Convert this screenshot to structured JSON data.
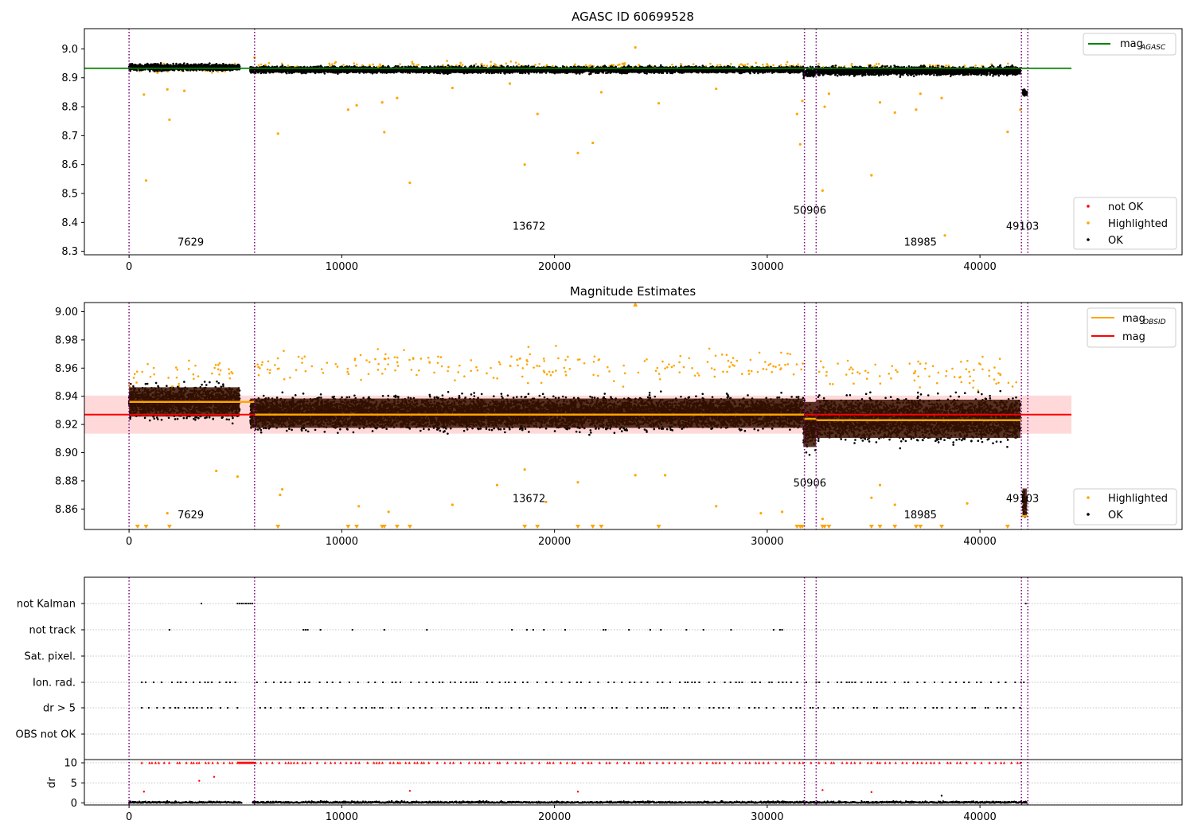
{
  "colors": {
    "ok": "#000000",
    "highlighted": "#ffa500",
    "not_ok": "#ff0000",
    "agasc_line": "#008000",
    "mag_line": "#ff0000",
    "mag_obsid_line": "#ffa500",
    "obs_boundary": "#800080",
    "band": "#ffcccc",
    "band_core": "#3a1200",
    "grid": "#b0b0b0"
  },
  "chart_data": [
    {
      "type": "scatter",
      "title": "AGASC ID 60699528",
      "xlim": [
        -2100,
        49500
      ],
      "ylim": [
        8.288,
        9.07
      ],
      "x_ticks": [
        0,
        10000,
        20000,
        30000,
        40000
      ],
      "x_tick_labels": [
        "0",
        "10000",
        "20000",
        "30000",
        "40000"
      ],
      "y_ticks": [
        8.3,
        8.4,
        8.5,
        8.6,
        8.7,
        8.8,
        8.9,
        9.0
      ],
      "y_tick_labels": [
        "8.3",
        "8.4",
        "8.5",
        "8.6",
        "8.7",
        "8.8",
        "8.9",
        "9.0"
      ],
      "obs_boundaries": [
        0,
        5900,
        31750,
        32300,
        41950,
        42250
      ],
      "obsids": [
        {
          "label": "7629",
          "x": 2900,
          "y": 8.32
        },
        {
          "label": "13672",
          "x": 18800,
          "y": 8.375
        },
        {
          "label": "50906",
          "x": 32000,
          "y": 8.43
        },
        {
          "label": "18985",
          "x": 37200,
          "y": 8.32
        },
        {
          "label": "49103",
          "x": 42000,
          "y": 8.375
        }
      ],
      "reference_line": {
        "name": "mag",
        "subscript": "AGASC",
        "y": 8.933,
        "x": [
          -2100,
          44300
        ]
      },
      "series": [
        {
          "name": "not OK",
          "style": "point",
          "segments": []
        },
        {
          "name": "Highlighted",
          "style": "point",
          "outliers": [
            [
              700,
              8.842
            ],
            [
              800,
              8.545
            ],
            [
              1900,
              8.755
            ],
            [
              1800,
              8.86
            ],
            [
              2600,
              8.855
            ],
            [
              7000,
              8.707
            ],
            [
              10300,
              8.79
            ],
            [
              10700,
              8.805
            ],
            [
              11900,
              8.815
            ],
            [
              12000,
              8.712
            ],
            [
              12600,
              8.83
            ],
            [
              13200,
              8.537
            ],
            [
              15200,
              8.865
            ],
            [
              17900,
              8.88
            ],
            [
              18600,
              8.6
            ],
            [
              19200,
              8.775
            ],
            [
              21100,
              8.64
            ],
            [
              21800,
              8.675
            ],
            [
              22200,
              8.85
            ],
            [
              24900,
              8.812
            ],
            [
              27600,
              8.862
            ],
            [
              31400,
              8.775
            ],
            [
              31550,
              8.67
            ],
            [
              31650,
              8.82
            ],
            [
              32600,
              8.51
            ],
            [
              32700,
              8.8
            ],
            [
              32900,
              8.845
            ],
            [
              34900,
              8.563
            ],
            [
              35300,
              8.815
            ],
            [
              36000,
              8.78
            ],
            [
              37000,
              8.79
            ],
            [
              37200,
              8.845
            ],
            [
              38200,
              8.83
            ],
            [
              38350,
              8.355
            ],
            [
              41300,
              8.713
            ],
            [
              41900,
              8.79
            ],
            [
              23800,
              9.005
            ],
            [
              5900,
              8.97
            ]
          ],
          "scatter_segments": [
            {
              "x": [
                0,
                5100
              ],
              "center": 8.933,
              "spread": 0.018,
              "count": 80
            },
            {
              "x": [
                5900,
                31700
              ],
              "center": 8.94,
              "spread": 0.018,
              "count": 220
            },
            {
              "x": [
                32300,
                41900
              ],
              "center": 8.935,
              "spread": 0.02,
              "count": 90
            }
          ]
        },
        {
          "name": "OK",
          "style": "point",
          "segments": [
            {
              "x": [
                0,
                5200
              ],
              "center": 8.936,
              "spread": 0.013
            },
            {
              "x": [
                5700,
                31700
              ],
              "center": 8.928,
              "spread": 0.013
            },
            {
              "x": [
                31700,
                32300
              ],
              "center": 8.92,
              "spread": 0.02
            },
            {
              "x": [
                32300,
                41900
              ],
              "center": 8.924,
              "spread": 0.017
            },
            {
              "x": [
                42000,
                42200
              ],
              "center": 8.85,
              "spread": 0.015
            }
          ]
        }
      ],
      "legends": [
        {
          "position": "upper right",
          "entries": [
            {
              "name": "mag",
              "subscript": "AGASC",
              "style": "line"
            }
          ]
        },
        {
          "position": "lower right",
          "entries": [
            {
              "name": "not OK",
              "style": "point"
            },
            {
              "name": "Highlighted",
              "style": "point"
            },
            {
              "name": "OK",
              "style": "point"
            }
          ]
        }
      ]
    },
    {
      "type": "scatter",
      "title": "Magnitude Estimates",
      "xlim": [
        -2100,
        49500
      ],
      "ylim": [
        8.8455,
        9.0065
      ],
      "x_ticks": [
        0,
        10000,
        20000,
        30000,
        40000
      ],
      "x_tick_labels": [
        "0",
        "10000",
        "20000",
        "30000",
        "40000"
      ],
      "y_ticks": [
        8.86,
        8.88,
        8.9,
        8.92,
        8.94,
        8.96,
        8.98,
        9.0
      ],
      "y_tick_labels": [
        "8.86",
        "8.88",
        "8.90",
        "8.92",
        "8.94",
        "8.96",
        "8.98",
        "9.00"
      ],
      "obs_boundaries": [
        0,
        5900,
        31750,
        32300,
        41950,
        42250
      ],
      "obsids": [
        {
          "label": "7629",
          "x": 2900,
          "y": 8.8535
        },
        {
          "label": "13672",
          "x": 18800,
          "y": 8.865
        },
        {
          "label": "50906",
          "x": 32000,
          "y": 8.876
        },
        {
          "label": "18985",
          "x": 37200,
          "y": 8.8535
        },
        {
          "label": "49103",
          "x": 42000,
          "y": 8.865
        }
      ],
      "mag": {
        "value": 8.927,
        "band": [
          8.9135,
          8.9405
        ],
        "x": [
          -2100,
          44300
        ]
      },
      "mag_obsid": [
        {
          "x": [
            0,
            5900
          ],
          "y": 8.936
        },
        {
          "x": [
            5900,
            31750
          ],
          "y": 8.927
        },
        {
          "x": [
            31750,
            32300
          ],
          "y": 8.924
        },
        {
          "x": [
            32300,
            41950
          ],
          "y": 8.923
        },
        {
          "x": [
            41950,
            42250
          ],
          "y": 8.855
        }
      ],
      "series": [
        {
          "name": "Highlighted",
          "style": "point",
          "outliers": [
            [
              1800,
              8.857
            ],
            [
              7100,
              8.87
            ],
            [
              7200,
              8.874
            ],
            [
              10800,
              8.862
            ],
            [
              12200,
              8.858
            ],
            [
              15200,
              8.863
            ],
            [
              17300,
              8.877
            ],
            [
              18600,
              8.888
            ],
            [
              19600,
              8.865
            ],
            [
              21100,
              8.879
            ],
            [
              23800,
              8.884
            ],
            [
              25200,
              8.884
            ],
            [
              27600,
              8.862
            ],
            [
              29700,
              8.857
            ],
            [
              30700,
              8.858
            ],
            [
              32600,
              8.853
            ],
            [
              34900,
              8.868
            ],
            [
              35300,
              8.877
            ],
            [
              36000,
              8.863
            ],
            [
              39400,
              8.864
            ],
            [
              4100,
              8.887
            ],
            [
              5100,
              8.883
            ],
            [
              23800,
              9.005
            ]
          ],
          "floor_markers_x": [
            400,
            800,
            1900,
            7000,
            10300,
            10700,
            11900,
            12000,
            12600,
            13200,
            18600,
            19200,
            21100,
            21800,
            22200,
            24900,
            31400,
            31550,
            31650,
            32600,
            32700,
            32900,
            34900,
            35300,
            36000,
            37000,
            37200,
            38200,
            41300
          ]
        },
        {
          "name": "OK",
          "style": "point",
          "segments": [
            {
              "x": [
                0,
                5200
              ],
              "center": 8.936,
              "spread": 0.013
            },
            {
              "x": [
                5700,
                31700
              ],
              "center": 8.928,
              "spread": 0.013
            },
            {
              "x": [
                31700,
                32300
              ],
              "center": 8.92,
              "spread": 0.02
            },
            {
              "x": [
                32300,
                41900
              ],
              "center": 8.924,
              "spread": 0.017
            },
            {
              "x": [
                42000,
                42200
              ],
              "center": 8.865,
              "spread": 0.012
            }
          ]
        }
      ],
      "legends": [
        {
          "position": "upper right",
          "entries": [
            {
              "name": "mag",
              "subscript": "OBSID",
              "style": "line"
            },
            {
              "name": "mag",
              "style": "line"
            }
          ]
        },
        {
          "position": "lower right",
          "entries": [
            {
              "name": "Highlighted",
              "style": "point"
            },
            {
              "name": "OK",
              "style": "point"
            }
          ]
        }
      ]
    },
    {
      "type": "scatter",
      "title": "",
      "xlim": [
        -2100,
        49500
      ],
      "flag_rows": [
        "not Kalman",
        "not track",
        "Sat. pixel.",
        "Ion. rad.",
        "dr > 5",
        "OBS not OK"
      ],
      "flags": {
        "not Kalman": {
          "points": [
            3400,
            5100,
            5200,
            5300,
            5400,
            5500,
            5600,
            5700,
            5800,
            42150
          ]
        },
        "not track": {
          "points": [
            1900,
            8200,
            8300,
            8400,
            9000,
            10500,
            12000,
            14000,
            18000,
            18700,
            19000,
            19500,
            20500,
            22300,
            22400,
            23500,
            24500,
            25000,
            26200,
            27000,
            28300,
            30300,
            30600,
            30700
          ]
        },
        "Sat. pixel.": {
          "points": []
        },
        "Ion. rad.": {
          "density": "dense",
          "x": [
            600,
            42100
          ]
        },
        "dr > 5": {
          "density": "dense",
          "x": [
            600,
            42100
          ]
        },
        "OBS not OK": {
          "points": []
        }
      },
      "obs_boundaries": [
        0,
        5900,
        31750,
        32300,
        41950,
        42250
      ],
      "dr": {
        "ylabel": "dr",
        "ylim": [
          -0.5,
          10.8
        ],
        "y_ticks": [
          0,
          5,
          10
        ],
        "y_tick_labels": [
          "0",
          "5",
          "10"
        ],
        "clip_value": 10,
        "outliers": [
          [
            700,
            2.8
          ],
          [
            3300,
            5.5
          ],
          [
            4000,
            6.5
          ],
          [
            32600,
            3.2
          ],
          [
            13200,
            3.0
          ],
          [
            21100,
            2.8
          ],
          [
            34900,
            2.7
          ],
          [
            38200,
            1.8
          ]
        ]
      }
    }
  ]
}
